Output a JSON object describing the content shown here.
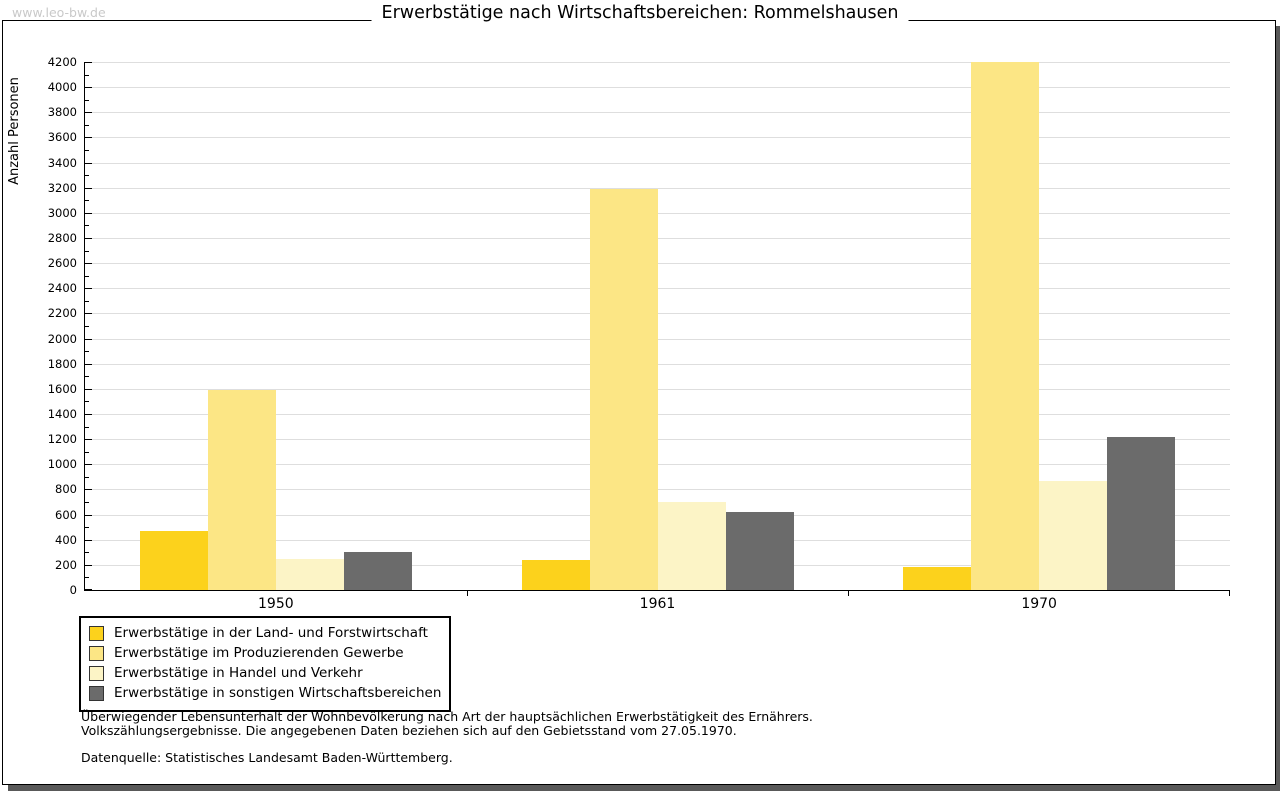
{
  "header": {
    "watermark": "www.leo-bw.de"
  },
  "chart_data": {
    "type": "bar",
    "title": "Erwerbstätige nach Wirtschaftsbereichen: Rommelshausen",
    "ylabel": "Anzahl Personen",
    "xlabel": "",
    "categories": [
      "1950",
      "1961",
      "1970"
    ],
    "series": [
      {
        "name": "Erwerbstätige in der Land- und Forstwirtschaft",
        "color": "#FCD21C",
        "values": [
          470,
          240,
          180
        ]
      },
      {
        "name": "Erwerbstätige im Produzierenden Gewerbe",
        "color": "#FCE685",
        "values": [
          1590,
          3190,
          4200
        ]
      },
      {
        "name": "Erwerbstätige in Handel und Verkehr",
        "color": "#FCF4C6",
        "values": [
          250,
          700,
          870
        ]
      },
      {
        "name": "Erwerbstätige in sonstigen Wirtschaftsbereichen",
        "color": "#6B6B6B",
        "values": [
          300,
          620,
          1220
        ]
      }
    ],
    "ylim": [
      0,
      4200
    ],
    "ytick_step": 200,
    "minor_tick_step": 100,
    "grid": "horizontal",
    "legend_position": "bottom-left"
  },
  "footnotes": {
    "line1": "Überwiegender Lebensunterhalt der Wohnbevölkerung nach Art der hauptsächlichen Erwerbstätigkeit des Ernährers.",
    "line2": "Volkszählungsergebnisse. Die angegebenen Daten beziehen sich auf den Gebietsstand vom 27.05.1970.",
    "source": "Datenquelle: Statistisches Landesamt Baden-Württemberg."
  },
  "colors": {
    "gridline": "#DEDEDE",
    "axis": "#000000",
    "frame_shadow": "#595959",
    "watermark_text": "#C9C9C9"
  }
}
